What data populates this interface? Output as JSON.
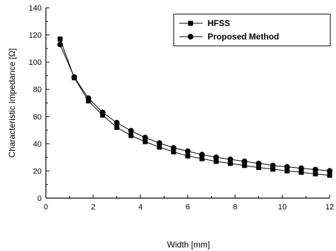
{
  "chart_data": {
    "type": "line",
    "title": "",
    "xlabel": "Width [mm]",
    "ylabel": "Characteristic Impedance [Ω]",
    "xlim": [
      0,
      12
    ],
    "ylim": [
      0,
      140
    ],
    "xticks": [
      0,
      2,
      4,
      6,
      8,
      10,
      12
    ],
    "yticks": [
      0,
      20,
      40,
      60,
      80,
      100,
      120,
      140
    ],
    "grid": false,
    "legend_position": "top-right",
    "series": [
      {
        "name": "HFSS",
        "marker": "square",
        "x": [
          0.6,
          1.2,
          1.8,
          2.4,
          3.0,
          3.6,
          4.2,
          4.8,
          5.4,
          6.0,
          6.6,
          7.2,
          7.8,
          8.4,
          9.0,
          9.6,
          10.2,
          10.8,
          11.4,
          12.0
        ],
        "values": [
          117,
          88.5,
          71.5,
          61,
          52,
          46,
          41.5,
          37.5,
          34,
          31,
          29,
          27,
          25.5,
          24,
          22.5,
          21.3,
          20,
          19,
          17.8,
          16.8
        ]
      },
      {
        "name": "Proposed Method",
        "marker": "circle",
        "x": [
          0.6,
          1.2,
          1.8,
          2.4,
          3.0,
          3.6,
          4.2,
          4.8,
          5.4,
          6.0,
          6.6,
          7.2,
          7.8,
          8.4,
          9.0,
          9.6,
          10.2,
          10.8,
          11.4,
          12.0
        ],
        "values": [
          113,
          89,
          73.5,
          63,
          55.5,
          49.5,
          44.5,
          40.5,
          37,
          34.5,
          32,
          30,
          28.5,
          27,
          25.5,
          24,
          23,
          22,
          21,
          20
        ]
      }
    ]
  }
}
